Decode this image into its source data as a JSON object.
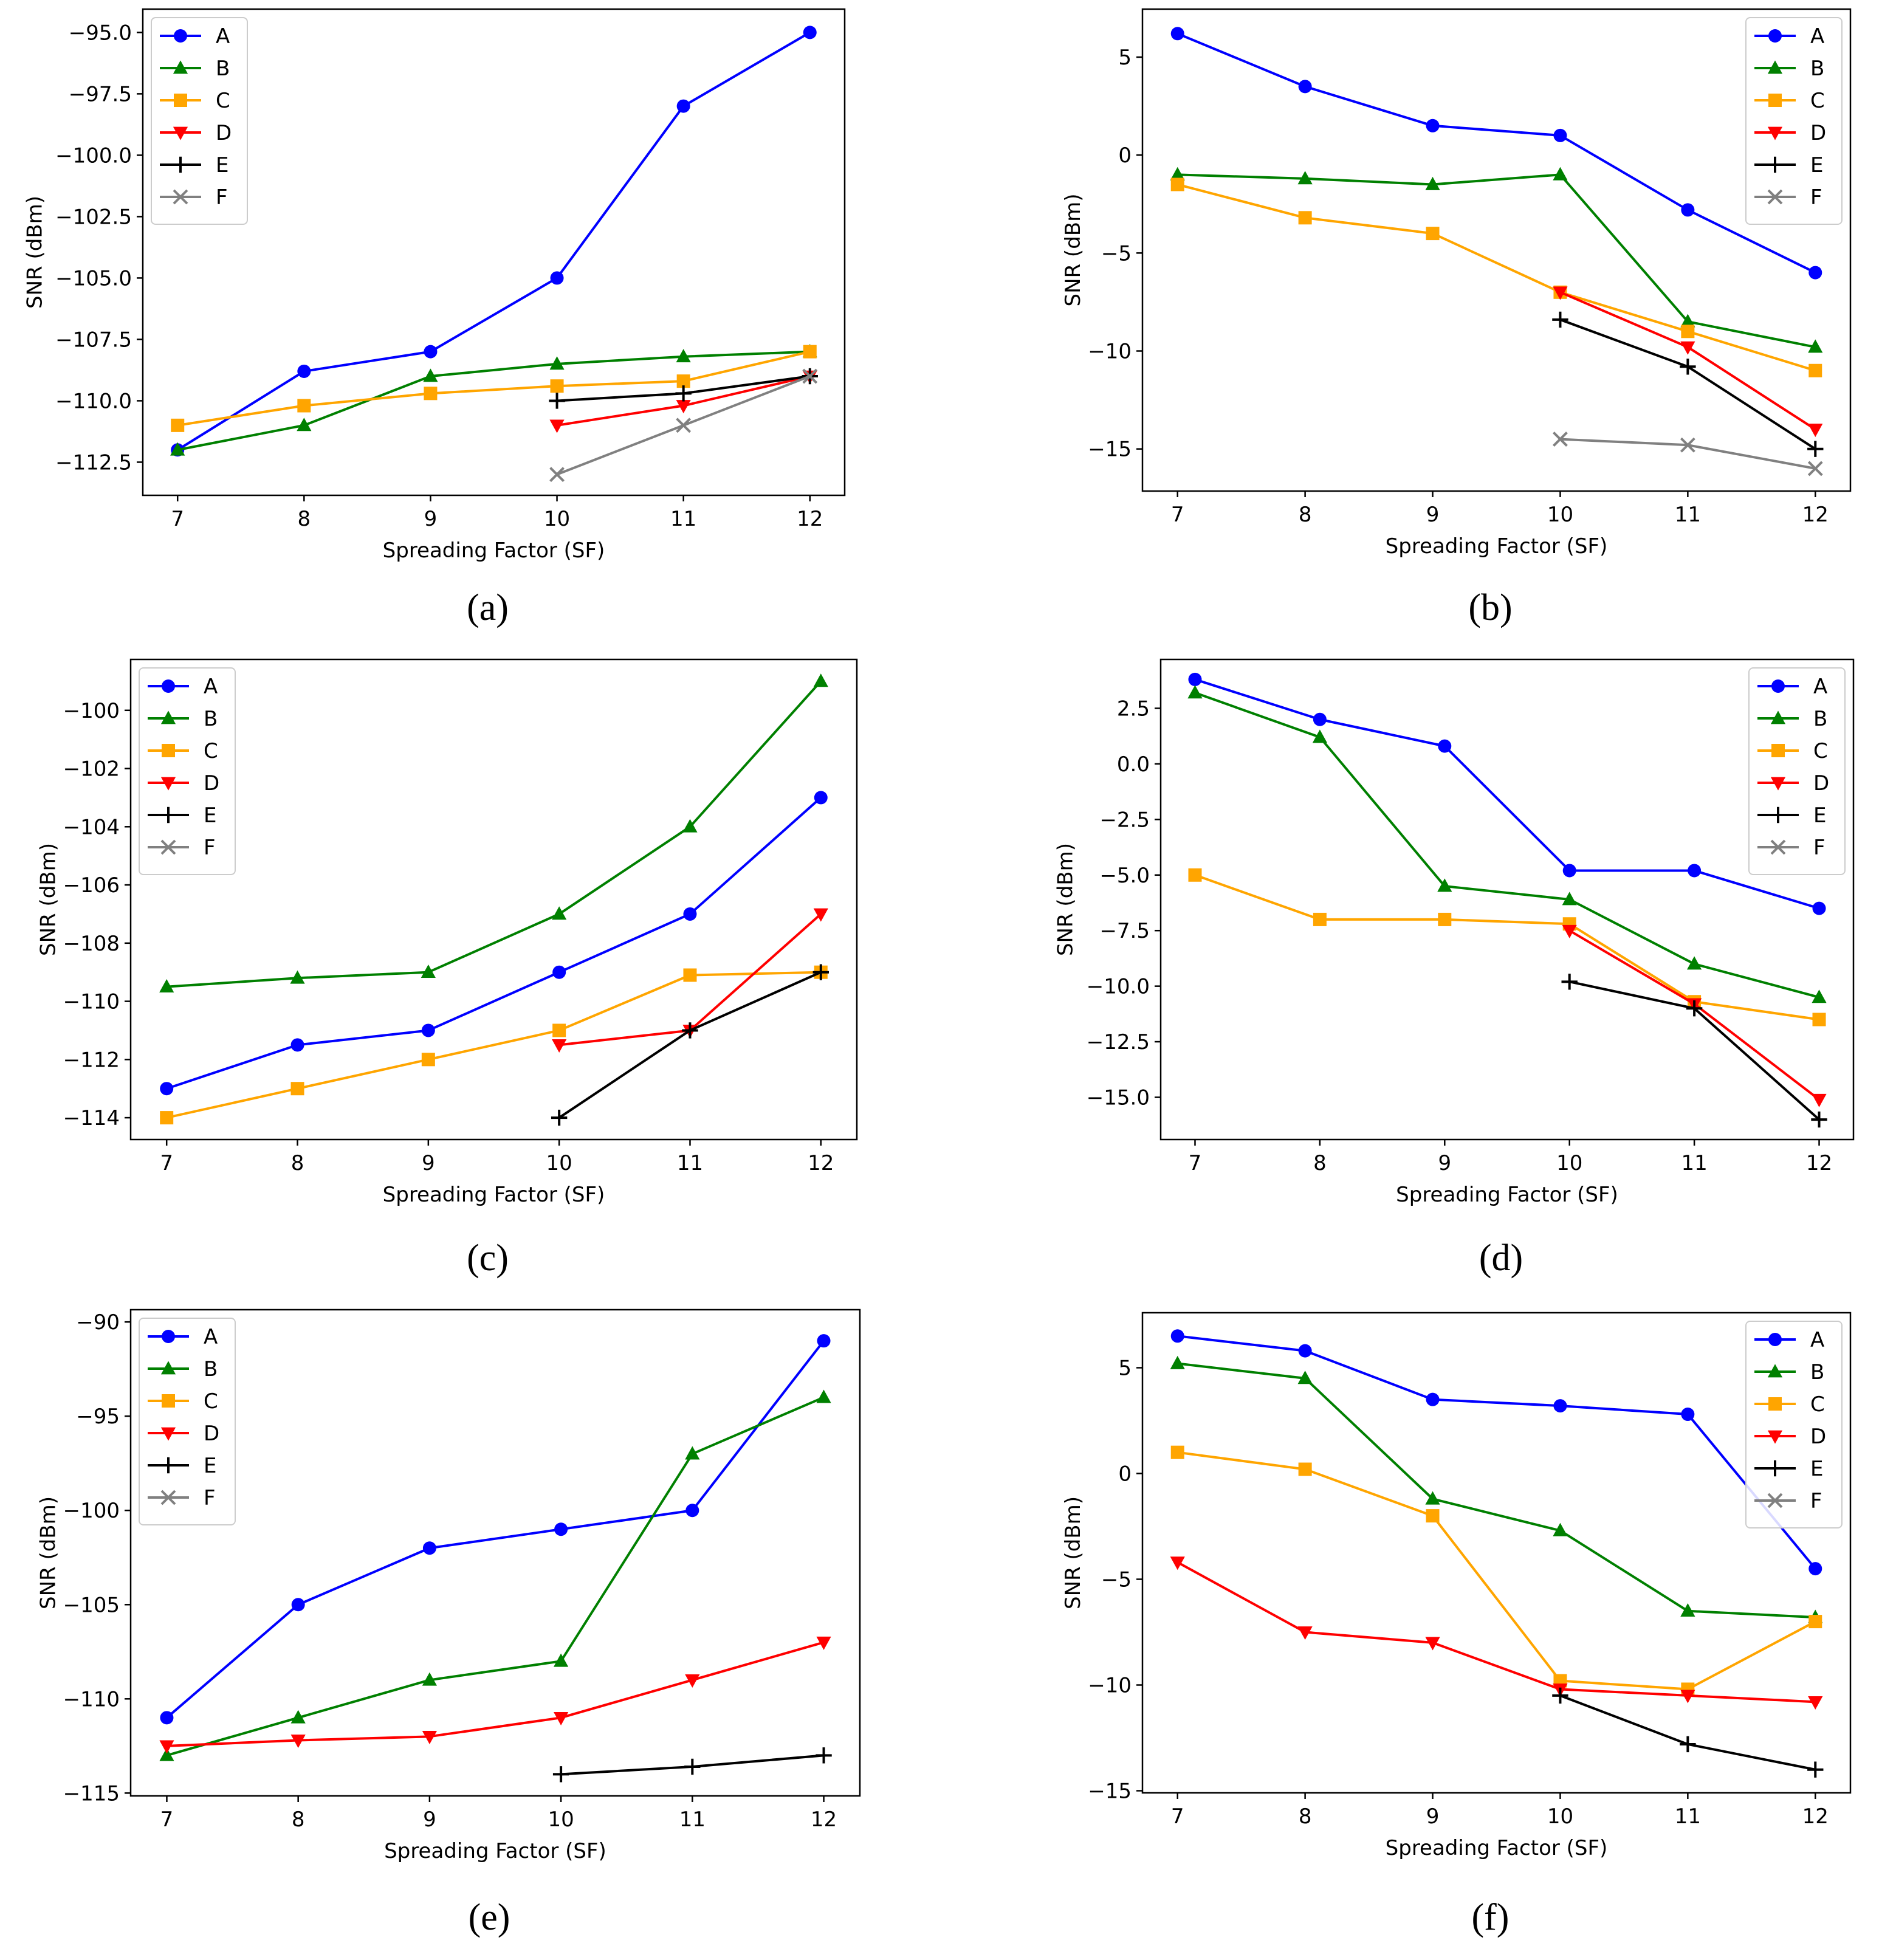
{
  "figure": {
    "series_styles": [
      {
        "name": "A",
        "color": "#0000ff",
        "marker": "circle"
      },
      {
        "name": "B",
        "color": "#008000",
        "marker": "triangle-up"
      },
      {
        "name": "C",
        "color": "#ffa500",
        "marker": "square"
      },
      {
        "name": "D",
        "color": "#ff0000",
        "marker": "triangle-down"
      },
      {
        "name": "E",
        "color": "#000000",
        "marker": "plus"
      },
      {
        "name": "F",
        "color": "#808080",
        "marker": "x"
      }
    ]
  },
  "chart_data": [
    {
      "type": "line",
      "panel": "(a)",
      "xlabel": "Spreading Factor (SF)",
      "ylabel": "SNR (dBm)",
      "x": [
        7,
        8,
        9,
        10,
        11,
        12
      ],
      "xticks": [
        "7",
        "8",
        "9",
        "10",
        "11",
        "12"
      ],
      "yticks": [
        -112.5,
        -110.0,
        -107.5,
        -105.0,
        -102.5,
        -100.0,
        -97.5,
        -95.0
      ],
      "ytick_labels": [
        "−112.5",
        "−110.0",
        "−107.5",
        "−105.0",
        "−102.5",
        "−100.0",
        "−97.5",
        "−95.0"
      ],
      "ylim": [
        -113.85,
        -94.05
      ],
      "legend": "top-left",
      "series": [
        {
          "name": "A",
          "values": [
            -112,
            -108.8,
            -108,
            -105,
            -98,
            -95
          ]
        },
        {
          "name": "B",
          "values": [
            -112,
            -111,
            -109,
            -108.5,
            -108.2,
            -108
          ]
        },
        {
          "name": "C",
          "values": [
            -111,
            -110.2,
            -109.7,
            -109.4,
            -109.2,
            -108
          ]
        },
        {
          "name": "D",
          "values": [
            null,
            null,
            null,
            -111,
            -110.2,
            -109
          ]
        },
        {
          "name": "E",
          "values": [
            null,
            null,
            null,
            -110,
            -109.7,
            -109
          ]
        },
        {
          "name": "F",
          "values": [
            null,
            null,
            null,
            -113,
            -111,
            -109
          ]
        }
      ]
    },
    {
      "type": "line",
      "panel": "(b)",
      "xlabel": "Spreading Factor (SF)",
      "ylabel": "SNR (dBm)",
      "x": [
        7,
        8,
        9,
        10,
        11,
        12
      ],
      "xticks": [
        "7",
        "8",
        "9",
        "10",
        "11",
        "12"
      ],
      "yticks": [
        -15,
        -10,
        -5,
        0,
        5
      ],
      "ytick_labels": [
        "−15",
        "−10",
        "−5",
        "0",
        "5"
      ],
      "ylim": [
        -17.15,
        7.45
      ],
      "legend": "top-right",
      "series": [
        {
          "name": "A",
          "values": [
            6.2,
            3.5,
            1.5,
            1.0,
            -2.8,
            -6.0
          ]
        },
        {
          "name": "B",
          "values": [
            -1.0,
            -1.2,
            -1.5,
            -1.0,
            -8.5,
            -9.8
          ]
        },
        {
          "name": "C",
          "values": [
            -1.5,
            -3.2,
            -4.0,
            -7.0,
            -9.0,
            -11.0
          ]
        },
        {
          "name": "D",
          "values": [
            null,
            null,
            null,
            -7.0,
            -9.8,
            -14.0
          ]
        },
        {
          "name": "E",
          "values": [
            null,
            null,
            null,
            -8.4,
            -10.8,
            -15.0
          ]
        },
        {
          "name": "F",
          "values": [
            null,
            null,
            null,
            -14.5,
            -14.8,
            -16.0
          ]
        }
      ]
    },
    {
      "type": "line",
      "panel": "(c)",
      "xlabel": "Spreading Factor (SF)",
      "ylabel": "SNR (dBm)",
      "x": [
        7,
        8,
        9,
        10,
        11,
        12
      ],
      "xticks": [
        "7",
        "8",
        "9",
        "10",
        "11",
        "12"
      ],
      "yticks": [
        -114,
        -112,
        -110,
        -108,
        -106,
        -104,
        -102,
        -100
      ],
      "ytick_labels": [
        "−114",
        "−112",
        "−110",
        "−108",
        "−106",
        "−104",
        "−102",
        "−100"
      ],
      "ylim": [
        -114.75,
        -98.25
      ],
      "legend": "top-left",
      "series": [
        {
          "name": "A",
          "values": [
            -113,
            -111.5,
            -111,
            -109,
            -107,
            -103
          ]
        },
        {
          "name": "B",
          "values": [
            -109.5,
            -109.2,
            -109,
            -107,
            -104,
            -99
          ]
        },
        {
          "name": "C",
          "values": [
            -114,
            -113,
            -112,
            -111,
            -109.1,
            -109
          ]
        },
        {
          "name": "D",
          "values": [
            null,
            null,
            null,
            -111.5,
            -111,
            -107
          ]
        },
        {
          "name": "E",
          "values": [
            null,
            null,
            null,
            -114,
            -111,
            -109
          ]
        },
        {
          "name": "F",
          "values": [
            null,
            null,
            null,
            null,
            null,
            null
          ]
        }
      ]
    },
    {
      "type": "line",
      "panel": "(d)",
      "xlabel": "Spreading Factor (SF)",
      "ylabel": "SNR (dBm)",
      "x": [
        7,
        8,
        9,
        10,
        11,
        12
      ],
      "xticks": [
        "7",
        "8",
        "9",
        "10",
        "11",
        "12"
      ],
      "yticks": [
        -15.0,
        -12.5,
        -10.0,
        -7.5,
        -5.0,
        -2.5,
        0.0,
        2.5
      ],
      "ytick_labels": [
        "−15.0",
        "−12.5",
        "−10.0",
        "−7.5",
        "−5.0",
        "−2.5",
        "0.0",
        "2.5"
      ],
      "ylim": [
        -16.9,
        4.7
      ],
      "legend": "top-right",
      "series": [
        {
          "name": "A",
          "values": [
            3.8,
            2.0,
            0.8,
            -4.8,
            -4.8,
            -6.5
          ]
        },
        {
          "name": "B",
          "values": [
            3.2,
            1.2,
            -5.5,
            -6.1,
            -9.0,
            -10.5
          ]
        },
        {
          "name": "C",
          "values": [
            -5.0,
            -7.0,
            -7.0,
            -7.2,
            -10.7,
            -11.5
          ]
        },
        {
          "name": "D",
          "values": [
            null,
            null,
            null,
            -7.5,
            -10.8,
            -15.1
          ]
        },
        {
          "name": "E",
          "values": [
            null,
            null,
            null,
            -9.8,
            -11.0,
            -16.0
          ]
        },
        {
          "name": "F",
          "values": [
            null,
            null,
            null,
            null,
            null,
            null
          ]
        }
      ]
    },
    {
      "type": "line",
      "panel": "(e)",
      "xlabel": "Spreading Factor (SF)",
      "ylabel": "SNR (dBm)",
      "x": [
        7,
        8,
        9,
        10,
        11,
        12
      ],
      "xticks": [
        "7",
        "8",
        "9",
        "10",
        "11",
        "12"
      ],
      "yticks": [
        -115,
        -110,
        -105,
        -100,
        -95,
        -90
      ],
      "ytick_labels": [
        "−115",
        "−110",
        "−105",
        "−100",
        "−95",
        "−90"
      ],
      "ylim": [
        -115.15,
        -89.35
      ],
      "legend": "top-left",
      "series": [
        {
          "name": "A",
          "values": [
            -111,
            -105,
            -102,
            -101,
            -100,
            -91
          ]
        },
        {
          "name": "B",
          "values": [
            -113,
            -111,
            -109,
            -108,
            -97,
            -94
          ]
        },
        {
          "name": "C",
          "values": [
            null,
            null,
            null,
            null,
            null,
            null
          ]
        },
        {
          "name": "D",
          "values": [
            -112.5,
            -112.2,
            -112,
            -111,
            -109,
            -107
          ]
        },
        {
          "name": "E",
          "values": [
            null,
            null,
            null,
            -114,
            -113.6,
            -113
          ]
        },
        {
          "name": "F",
          "values": [
            null,
            null,
            null,
            null,
            null,
            null
          ]
        }
      ]
    },
    {
      "type": "line",
      "panel": "(f)",
      "xlabel": "Spreading Factor (SF)",
      "ylabel": "SNR (dBm)",
      "x": [
        7,
        8,
        9,
        10,
        11,
        12
      ],
      "xticks": [
        "7",
        "8",
        "9",
        "10",
        "11",
        "12"
      ],
      "yticks": [
        -15,
        -10,
        -5,
        0,
        5
      ],
      "ytick_labels": [
        "−15",
        "−10",
        "−5",
        "0",
        "5"
      ],
      "ylim": [
        -15.1,
        7.6
      ],
      "legend": "top-right",
      "series": [
        {
          "name": "A",
          "values": [
            6.5,
            5.8,
            3.5,
            3.2,
            2.8,
            -4.5
          ]
        },
        {
          "name": "B",
          "values": [
            5.2,
            4.5,
            -1.2,
            -2.7,
            -6.5,
            -6.8
          ]
        },
        {
          "name": "C",
          "values": [
            1.0,
            0.2,
            -2.0,
            -9.8,
            -10.2,
            -7.0
          ]
        },
        {
          "name": "D",
          "values": [
            -4.2,
            -7.5,
            -8.0,
            -10.2,
            -10.5,
            -10.8
          ]
        },
        {
          "name": "E",
          "values": [
            null,
            null,
            null,
            -10.5,
            -12.8,
            -14.0
          ]
        },
        {
          "name": "F",
          "values": [
            null,
            null,
            null,
            null,
            null,
            null
          ]
        }
      ]
    }
  ]
}
